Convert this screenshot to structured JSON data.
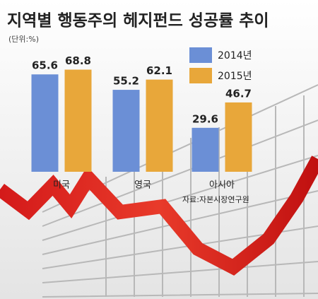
{
  "chart_data": {
    "type": "bar",
    "title": "지역별 행동주의 헤지펀드 성공률 추이",
    "subtitle": "(단위:%)",
    "source": "자료:자본시장연구원",
    "categories": [
      "미국",
      "영국",
      "아시아"
    ],
    "series": [
      {
        "name": "2014년",
        "color": "#6b8fd6",
        "values": [
          65.6,
          55.2,
          29.6
        ]
      },
      {
        "name": "2015년",
        "color": "#e8a73a",
        "values": [
          68.8,
          62.1,
          46.7
        ]
      }
    ]
  }
}
